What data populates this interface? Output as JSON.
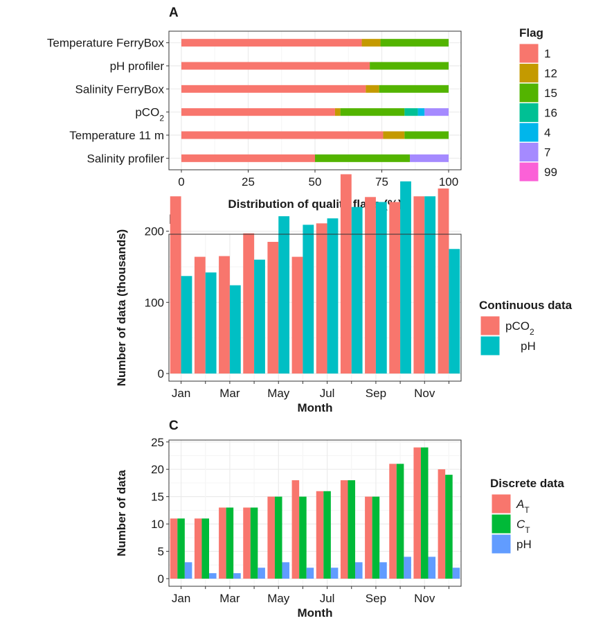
{
  "chart_data": [
    {
      "panel": "A",
      "type": "bar",
      "orientation": "horizontal",
      "stacked": true,
      "xlabel": "Distribution of quality flags (%)",
      "ylabel": "",
      "xlim": [
        0,
        100
      ],
      "xticks": [
        0,
        25,
        50,
        75,
        100
      ],
      "grid": true,
      "legend_position": "right",
      "legend_title": "Flag",
      "categories": [
        "Temperature FerryBox",
        "pH profiler",
        "Salinity FerryBox",
        "pCO2",
        "Temperature 11 m",
        "Salinity profiler"
      ],
      "series": [
        {
          "name": "1",
          "color": "#F8766D",
          "values": [
            67.5,
            70.5,
            69.0,
            57.5,
            75.5,
            50.0
          ]
        },
        {
          "name": "12",
          "color": "#C49A00",
          "values": [
            7.0,
            0.0,
            5.0,
            2.0,
            8.0,
            0.0
          ]
        },
        {
          "name": "15",
          "color": "#53B400",
          "values": [
            25.5,
            29.5,
            26.0,
            24.0,
            16.5,
            35.5
          ]
        },
        {
          "name": "16",
          "color": "#00C094",
          "values": [
            0.0,
            0.0,
            0.0,
            5.0,
            0.0,
            0.0
          ]
        },
        {
          "name": "4",
          "color": "#00B6EB",
          "values": [
            0.0,
            0.0,
            0.0,
            2.5,
            0.0,
            0.0
          ]
        },
        {
          "name": "7",
          "color": "#A58AFF",
          "values": [
            0.0,
            0.0,
            0.0,
            9.0,
            0.0,
            14.5
          ]
        },
        {
          "name": "99",
          "color": "#FB61D7",
          "values": [
            0.0,
            0.0,
            0.0,
            0.0,
            0.0,
            0.0
          ]
        }
      ]
    },
    {
      "panel": "B",
      "type": "bar",
      "grouped": true,
      "xlabel": "Month",
      "ylabel": "Number of data (thousands)",
      "ylim": [
        0,
        300
      ],
      "yticks": [
        0,
        100,
        200
      ],
      "x_tick_labels": [
        "Jan",
        "Mar",
        "May",
        "Jul",
        "Sep",
        "Nov"
      ],
      "categories": [
        "1",
        "2",
        "3",
        "4",
        "5",
        "6",
        "7",
        "8",
        "9",
        "10",
        "11",
        "12"
      ],
      "grid": true,
      "legend_position": "right",
      "legend_title": "Continuous data",
      "series": [
        {
          "name": "pCO2",
          "color": "#F8766D",
          "values": [
            249,
            164,
            165,
            197,
            185,
            164,
            211,
            280,
            248,
            241,
            249,
            260
          ]
        },
        {
          "name": "pH",
          "color": "#00BFC4",
          "values": [
            137,
            142,
            124,
            160,
            221,
            209,
            218,
            234,
            241,
            270,
            249,
            175
          ]
        }
      ]
    },
    {
      "panel": "C",
      "type": "bar",
      "grouped": true,
      "xlabel": "Month",
      "ylabel": "Number of data",
      "ylim": [
        0,
        25
      ],
      "yticks": [
        0,
        5,
        10,
        15,
        20,
        25
      ],
      "x_tick_labels": [
        "Jan",
        "Mar",
        "May",
        "Jul",
        "Sep",
        "Nov"
      ],
      "categories": [
        "1",
        "2",
        "3",
        "4",
        "5",
        "6",
        "7",
        "8",
        "9",
        "10",
        "11",
        "12"
      ],
      "grid": true,
      "legend_position": "right",
      "legend_title": "Discrete data",
      "series": [
        {
          "name": "A_T",
          "color": "#F8766D",
          "values": [
            11,
            11,
            13,
            13,
            15,
            18,
            16,
            18,
            15,
            21,
            24,
            20
          ]
        },
        {
          "name": "C_T",
          "color": "#00BA38",
          "values": [
            11,
            11,
            13,
            13,
            15,
            15,
            16,
            18,
            15,
            21,
            24,
            19
          ]
        },
        {
          "name": "pH",
          "color": "#619CFF",
          "values": [
            3,
            1,
            1,
            2,
            3,
            2,
            2,
            3,
            3,
            4,
            4,
            2
          ]
        }
      ]
    }
  ]
}
